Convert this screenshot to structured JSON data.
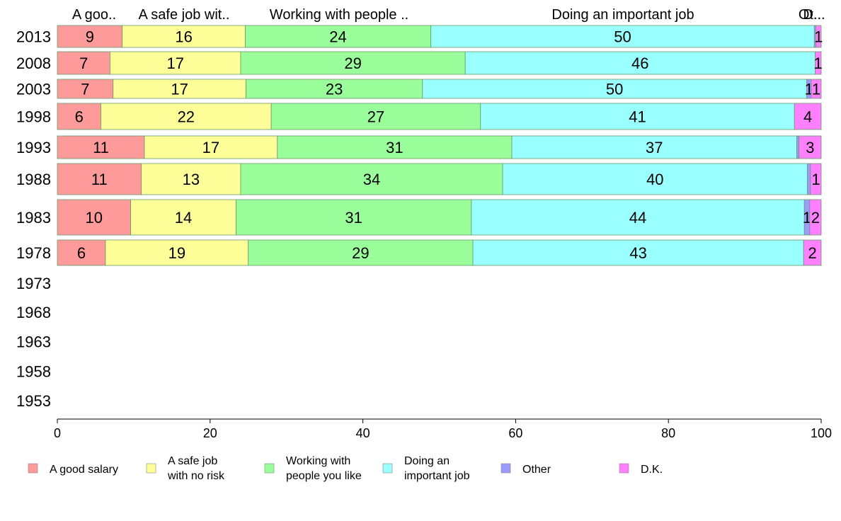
{
  "chart_data": {
    "type": "bar",
    "orientation": "horizontal",
    "stacked": true,
    "categories": [
      "2013",
      "2008",
      "2003",
      "1998",
      "1993",
      "1988",
      "1983",
      "1978",
      "1973",
      "1968",
      "1963",
      "1958",
      "1953"
    ],
    "xlim": [
      0,
      100
    ],
    "xticks": [
      "0",
      "20",
      "40",
      "60",
      "80",
      "100"
    ],
    "grid": false,
    "legend_position": "bottom",
    "top_labels": [
      "A goo..",
      "A safe job wit..",
      "Working with people ..",
      "Doing an important job",
      "Ot..",
      "D..."
    ],
    "series": [
      {
        "name": "A good salary",
        "legend_lines": [
          "A good salary"
        ],
        "color": "#FF9A9A",
        "values": [
          8.5,
          6.9,
          7.3,
          5.7,
          11.4,
          11.0,
          9.6,
          6.3,
          null,
          null,
          null,
          null,
          null
        ],
        "labels": [
          "9",
          "7",
          "7",
          "6",
          "11",
          "11",
          "10",
          "6",
          "",
          "",
          "",
          "",
          ""
        ]
      },
      {
        "name": "A safe job with no risk",
        "legend_lines": [
          "A safe job",
          "with no risk"
        ],
        "color": "#FFFF9A",
        "values": [
          16.1,
          17.1,
          17.4,
          22.3,
          17.4,
          13.0,
          13.8,
          18.7,
          null,
          null,
          null,
          null,
          null
        ],
        "labels": [
          "16",
          "17",
          "17",
          "22",
          "17",
          "13",
          "14",
          "19",
          "",
          "",
          "",
          "",
          ""
        ]
      },
      {
        "name": "Working with people you like",
        "legend_lines": [
          "Working with",
          "people you like"
        ],
        "color": "#9AFF9A",
        "values": [
          24.3,
          29.4,
          23.1,
          27.4,
          30.7,
          34.3,
          30.8,
          29.4,
          null,
          null,
          null,
          null,
          null
        ],
        "labels": [
          "24",
          "29",
          "23",
          "27",
          "31",
          "34",
          "31",
          "29",
          "",
          "",
          "",
          "",
          ""
        ]
      },
      {
        "name": "Doing an important job",
        "legend_lines": [
          "Doing an",
          "important job"
        ],
        "color": "#9AFFFF",
        "values": [
          50.2,
          45.8,
          50.3,
          41.1,
          37.3,
          39.9,
          43.6,
          43.3,
          null,
          null,
          null,
          null,
          null
        ],
        "labels": [
          "50",
          "46",
          "50",
          "41",
          "37",
          "40",
          "44",
          "43",
          "",
          "",
          "",
          "",
          ""
        ]
      },
      {
        "name": "Other",
        "legend_lines": [
          "Other"
        ],
        "color": "#9A9AFF",
        "values": [
          0.2,
          0.0,
          0.6,
          0.0,
          0.3,
          0.4,
          0.7,
          0.0,
          null,
          null,
          null,
          null,
          null
        ],
        "labels": [
          "",
          "",
          "1",
          "",
          "",
          "",
          "1",
          "",
          "",
          "",
          "",
          "",
          ""
        ]
      },
      {
        "name": "D.K.",
        "legend_lines": [
          "D.K."
        ],
        "color": "#FF80FF",
        "values": [
          0.7,
          0.8,
          1.3,
          3.5,
          2.9,
          1.4,
          1.5,
          2.3,
          null,
          null,
          null,
          null,
          null
        ],
        "labels": [
          "1",
          "1",
          "1",
          "4",
          "3",
          "1",
          "2",
          "2",
          "",
          "",
          "",
          "",
          ""
        ]
      }
    ]
  }
}
